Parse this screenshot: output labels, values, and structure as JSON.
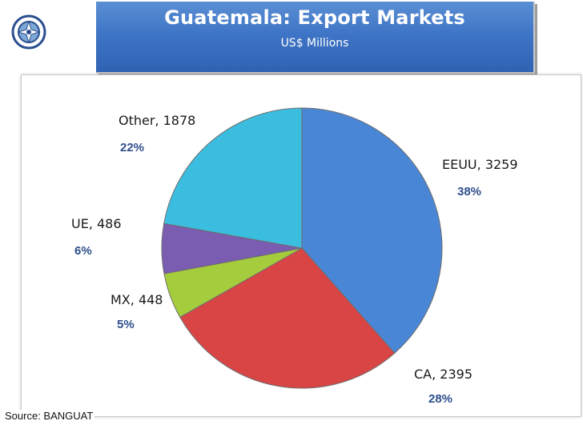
{
  "chart_data": {
    "type": "pie",
    "title": "Guatemala: Export  Markets",
    "subtitle": "US$ Millions",
    "slices": [
      {
        "label": "EEUU, 3259",
        "name": "EEUU",
        "value": 3259,
        "percent": "38%",
        "color": "#4a86d6"
      },
      {
        "label": "CA, 2395",
        "name": "CA",
        "value": 2395,
        "percent": "28%",
        "color": "#d94545"
      },
      {
        "label": "MX, 448",
        "name": "MX",
        "value": 448,
        "percent": "5%",
        "color": "#a5cc3c"
      },
      {
        "label": "UE, 486",
        "name": "UE",
        "value": 486,
        "percent": "6%",
        "color": "#7a5cb0"
      },
      {
        "label": "Other, 1878",
        "name": "Other",
        "value": 1878,
        "percent": "22%",
        "color": "#3bbde0"
      }
    ],
    "legend": "none"
  },
  "source": "Source:   BANGUAT",
  "logo": {
    "icon": "central-bank-seal-icon"
  }
}
